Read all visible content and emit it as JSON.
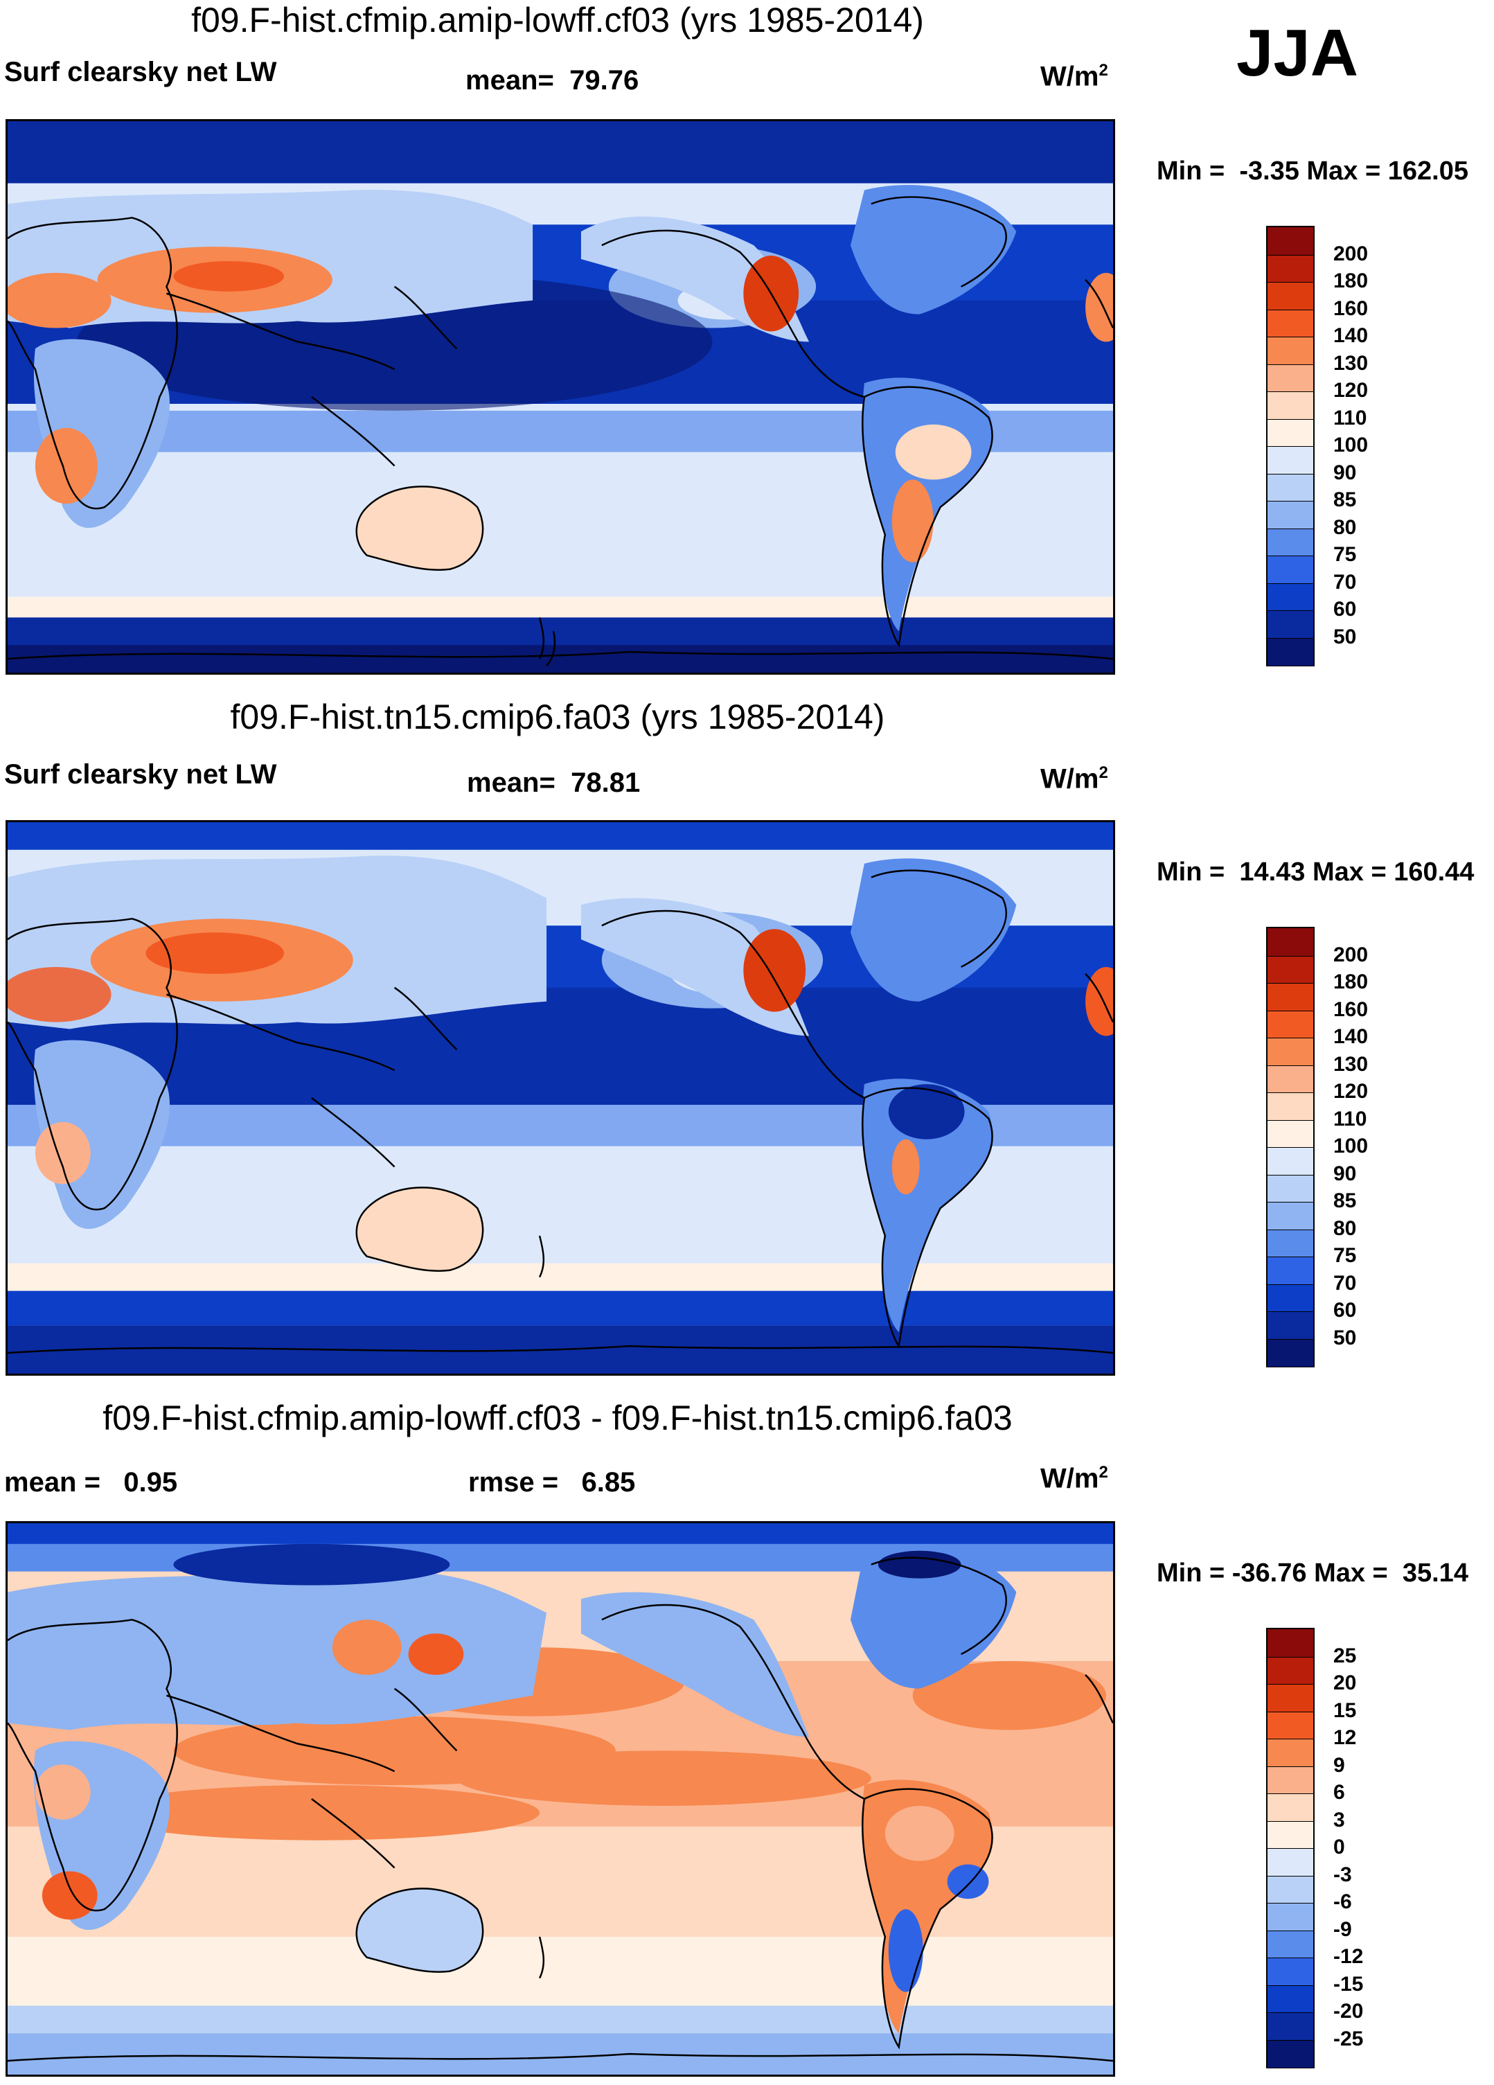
{
  "season": "JJA",
  "panels": [
    {
      "case_title": "f09.F-hist.cfmip.amip-lowff.cf03 (yrs 1985-2014)",
      "variable_label": "Surf clearsky net LW",
      "stat1_label": "mean=",
      "stat1_value": "79.76",
      "stat2_label": "",
      "stat2_value": "",
      "units": "W/m",
      "units_sup": "2",
      "min_label": "Min =",
      "min_value": "-3.35",
      "max_label": "Max =",
      "max_value": "162.05",
      "colorbar_levels": [
        "200",
        "180",
        "160",
        "140",
        "130",
        "120",
        "110",
        "100",
        "90",
        "85",
        "80",
        "75",
        "70",
        "60",
        "50"
      ],
      "colorbar_colors": [
        "#8b0a0a",
        "#b81e0a",
        "#dd3c0f",
        "#f25a24",
        "#f7884f",
        "#fbb08c",
        "#fddac1",
        "#fff1e4",
        "#dde9fb",
        "#b9d1f7",
        "#8fb4f1",
        "#5a8cec",
        "#2f63e6",
        "#0c3ec7",
        "#0a2aa0",
        "#071670"
      ]
    },
    {
      "case_title": "f09.F-hist.tn15.cmip6.fa03 (yrs 1985-2014)",
      "variable_label": "Surf clearsky net LW",
      "stat1_label": "mean=",
      "stat1_value": "78.81",
      "stat2_label": "",
      "stat2_value": "",
      "units": "W/m",
      "units_sup": "2",
      "min_label": "Min =",
      "min_value": "14.43",
      "max_label": "Max =",
      "max_value": "160.44",
      "colorbar_levels": [
        "200",
        "180",
        "160",
        "140",
        "130",
        "120",
        "110",
        "100",
        "90",
        "85",
        "80",
        "75",
        "70",
        "60",
        "50"
      ],
      "colorbar_colors": [
        "#8b0a0a",
        "#b81e0a",
        "#dd3c0f",
        "#f25a24",
        "#f7884f",
        "#fbb08c",
        "#fddac1",
        "#fff1e4",
        "#dde9fb",
        "#b9d1f7",
        "#8fb4f1",
        "#5a8cec",
        "#2f63e6",
        "#0c3ec7",
        "#0a2aa0",
        "#071670"
      ]
    },
    {
      "case_title": "f09.F-hist.cfmip.amip-lowff.cf03 - f09.F-hist.tn15.cmip6.fa03",
      "variable_label": "",
      "stat1_label": "mean =",
      "stat1_value": "0.95",
      "stat2_label": "rmse =",
      "stat2_value": "6.85",
      "units": "W/m",
      "units_sup": "2",
      "min_label": "Min =",
      "min_value": "-36.76",
      "max_label": "Max =",
      "max_value": "35.14",
      "colorbar_levels": [
        "25",
        "20",
        "15",
        "12",
        "9",
        "6",
        "3",
        "0",
        "-3",
        "-6",
        "-9",
        "-12",
        "-15",
        "-20",
        "-25"
      ],
      "colorbar_colors": [
        "#8b0a0a",
        "#b81e0a",
        "#dd3c0f",
        "#f25a24",
        "#f7884f",
        "#fbb08c",
        "#fddac1",
        "#fff1e4",
        "#dde9fb",
        "#b9d1f7",
        "#8fb4f1",
        "#5a8cec",
        "#2f63e6",
        "#0c3ec7",
        "#0a2aa0",
        "#071670"
      ]
    }
  ]
}
